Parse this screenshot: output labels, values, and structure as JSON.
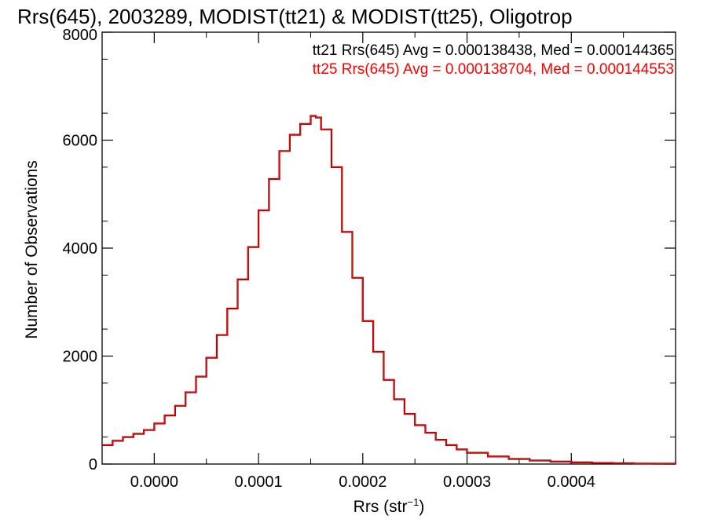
{
  "chart_data": {
    "type": "histogram",
    "title": "Rrs(645), 2003289, MODIST(tt21) & MODIST(tt25), Oligotrop",
    "xlabel_base": "Rrs (str",
    "xlabel_sup": "−1",
    "xlabel_end": ")",
    "ylabel": "Number of Observations",
    "xlim": [
      -5e-05,
      0.0005
    ],
    "ylim": [
      0,
      8000
    ],
    "x_ticks": [
      {
        "value": 0.0,
        "label": "0.0000"
      },
      {
        "value": 0.0001,
        "label": "0.0001"
      },
      {
        "value": 0.0002,
        "label": "0.0002"
      },
      {
        "value": 0.0003,
        "label": "0.0003"
      },
      {
        "value": 0.0004,
        "label": "0.0004"
      }
    ],
    "y_ticks": [
      {
        "value": 0,
        "label": "0"
      },
      {
        "value": 2000,
        "label": "2000"
      },
      {
        "value": 4000,
        "label": "4000"
      },
      {
        "value": 6000,
        "label": "6000"
      },
      {
        "value": 8000,
        "label": "8000"
      }
    ],
    "annotations": [
      {
        "text": "tt21 Rrs(645) Avg = 0.000138438, Med = 0.000144365",
        "color": "#000000"
      },
      {
        "text": "tt25 Rrs(645) Avg = 0.000138704, Med = 0.000144553",
        "color": "#ff0000"
      }
    ],
    "series": [
      {
        "name": "tt21",
        "color": "#000000",
        "points": [
          [
            -5e-05,
            350
          ],
          [
            -4e-05,
            430
          ],
          [
            -3e-05,
            500
          ],
          [
            -2e-05,
            560
          ],
          [
            -1e-05,
            630
          ],
          [
            0.0,
            750
          ],
          [
            1e-05,
            900
          ],
          [
            2e-05,
            1080
          ],
          [
            3e-05,
            1330
          ],
          [
            4e-05,
            1620
          ],
          [
            5e-05,
            1970
          ],
          [
            6e-05,
            2390
          ],
          [
            7e-05,
            2880
          ],
          [
            8e-05,
            3420
          ],
          [
            9e-05,
            4020
          ],
          [
            0.0001,
            4700
          ],
          [
            0.00011,
            5280
          ],
          [
            0.00012,
            5800
          ],
          [
            0.00013,
            6100
          ],
          [
            0.00014,
            6300
          ],
          [
            0.00015,
            6450
          ],
          [
            0.000155,
            6420
          ],
          [
            0.00016,
            6200
          ],
          [
            0.00017,
            5500
          ],
          [
            0.00018,
            4300
          ],
          [
            0.00019,
            3450
          ],
          [
            0.0002,
            2650
          ],
          [
            0.00021,
            2080
          ],
          [
            0.00022,
            1560
          ],
          [
            0.00023,
            1200
          ],
          [
            0.00024,
            930
          ],
          [
            0.00025,
            720
          ],
          [
            0.00026,
            580
          ],
          [
            0.00027,
            450
          ],
          [
            0.00028,
            350
          ],
          [
            0.00029,
            270
          ],
          [
            0.0003,
            210
          ],
          [
            0.00032,
            140
          ],
          [
            0.00034,
            95
          ],
          [
            0.00036,
            65
          ],
          [
            0.00038,
            45
          ],
          [
            0.0004,
            30
          ],
          [
            0.00042,
            20
          ],
          [
            0.00044,
            15
          ],
          [
            0.00046,
            10
          ],
          [
            0.00048,
            8
          ],
          [
            0.0005,
            5
          ]
        ]
      },
      {
        "name": "tt25",
        "color": "#ff0000",
        "points": [
          [
            -5e-05,
            350
          ],
          [
            -4e-05,
            430
          ],
          [
            -3e-05,
            500
          ],
          [
            -2e-05,
            560
          ],
          [
            -1e-05,
            630
          ],
          [
            0.0,
            750
          ],
          [
            1e-05,
            900
          ],
          [
            2e-05,
            1080
          ],
          [
            3e-05,
            1330
          ],
          [
            4e-05,
            1620
          ],
          [
            5e-05,
            1970
          ],
          [
            6e-05,
            2390
          ],
          [
            7e-05,
            2880
          ],
          [
            8e-05,
            3420
          ],
          [
            9e-05,
            4020
          ],
          [
            0.0001,
            4700
          ],
          [
            0.00011,
            5280
          ],
          [
            0.00012,
            5800
          ],
          [
            0.00013,
            6100
          ],
          [
            0.00014,
            6300
          ],
          [
            0.00015,
            6450
          ],
          [
            0.000155,
            6420
          ],
          [
            0.00016,
            6200
          ],
          [
            0.00017,
            5500
          ],
          [
            0.00018,
            4300
          ],
          [
            0.00019,
            3450
          ],
          [
            0.0002,
            2650
          ],
          [
            0.00021,
            2080
          ],
          [
            0.00022,
            1560
          ],
          [
            0.00023,
            1200
          ],
          [
            0.00024,
            930
          ],
          [
            0.00025,
            720
          ],
          [
            0.00026,
            580
          ],
          [
            0.00027,
            450
          ],
          [
            0.00028,
            350
          ],
          [
            0.00029,
            270
          ],
          [
            0.0003,
            210
          ],
          [
            0.00032,
            140
          ],
          [
            0.00034,
            95
          ],
          [
            0.00036,
            65
          ],
          [
            0.00038,
            45
          ],
          [
            0.0004,
            30
          ],
          [
            0.00042,
            20
          ],
          [
            0.00044,
            15
          ],
          [
            0.00046,
            10
          ],
          [
            0.00048,
            8
          ],
          [
            0.0005,
            5
          ]
        ]
      }
    ]
  }
}
